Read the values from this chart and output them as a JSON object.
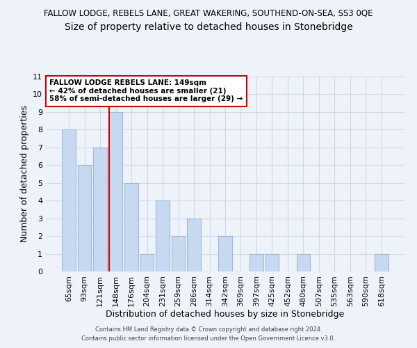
{
  "title": "FALLOW LODGE, REBELS LANE, GREAT WAKERING, SOUTHEND-ON-SEA, SS3 0QE",
  "subtitle": "Size of property relative to detached houses in Stonebridge",
  "xlabel": "Distribution of detached houses by size in Stonebridge",
  "ylabel": "Number of detached properties",
  "categories": [
    "65sqm",
    "93sqm",
    "121sqm",
    "148sqm",
    "176sqm",
    "204sqm",
    "231sqm",
    "259sqm",
    "286sqm",
    "314sqm",
    "342sqm",
    "369sqm",
    "397sqm",
    "425sqm",
    "452sqm",
    "480sqm",
    "507sqm",
    "535sqm",
    "563sqm",
    "590sqm",
    "618sqm"
  ],
  "values": [
    8,
    6,
    7,
    9,
    5,
    1,
    4,
    2,
    3,
    0,
    2,
    0,
    1,
    1,
    0,
    1,
    0,
    0,
    0,
    0,
    1
  ],
  "bar_color": "#c6d9f0",
  "bar_edge_color": "#a0b8d8",
  "vline_color": "#cc0000",
  "annotation_text": "FALLOW LODGE REBELS LANE: 149sqm\n← 42% of detached houses are smaller (21)\n58% of semi-detached houses are larger (29) →",
  "annotation_box_color": "#ffffff",
  "annotation_box_edge_color": "#cc0000",
  "ylim": [
    0,
    11
  ],
  "yticks": [
    0,
    1,
    2,
    3,
    4,
    5,
    6,
    7,
    8,
    9,
    10,
    11
  ],
  "footer1": "Contains HM Land Registry data © Crown copyright and database right 2024.",
  "footer2": "Contains public sector information licensed under the Open Government Licence v3.0.",
  "bg_color": "#eef2f9",
  "plot_bg_color": "#eef2f9",
  "grid_color": "#d0d8e8",
  "title_fontsize": 8.5,
  "subtitle_fontsize": 10,
  "ylabel_fontsize": 9,
  "xlabel_fontsize": 9,
  "tick_fontsize": 8,
  "annotation_fontsize": 7.5,
  "footer_fontsize": 6.0
}
